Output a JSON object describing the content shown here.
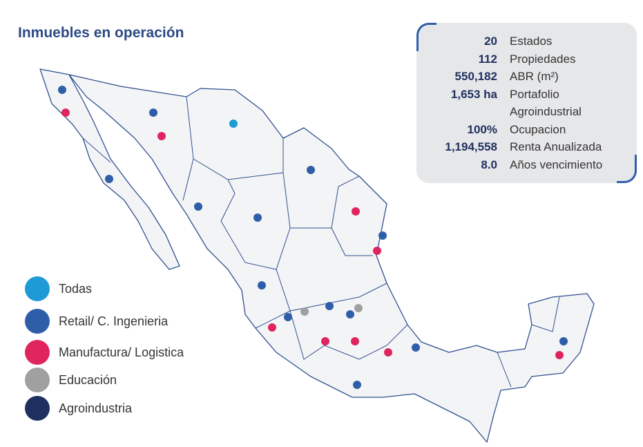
{
  "title": "Inmuebles en operación",
  "stats": [
    {
      "value": "20",
      "label": "Estados"
    },
    {
      "value": "112",
      "label": "Propiedades"
    },
    {
      "value": "550,182",
      "label": "ABR (m²)"
    },
    {
      "value": "1,653 ha",
      "label": "Portafolio Agroindustrial"
    },
    {
      "value": "100%",
      "label": "Ocupacion"
    },
    {
      "value": "1,194,558",
      "label": "Renta Anualizada"
    },
    {
      "value": "8.0",
      "label": "Años vencimiento"
    }
  ],
  "legend": [
    {
      "label": "Todas"
    },
    {
      "label": "Retail/ C. Ingenieria"
    },
    {
      "label": "Manufactura/ Logistica"
    },
    {
      "label": "Educación"
    },
    {
      "label": "Agroindustria"
    }
  ]
}
